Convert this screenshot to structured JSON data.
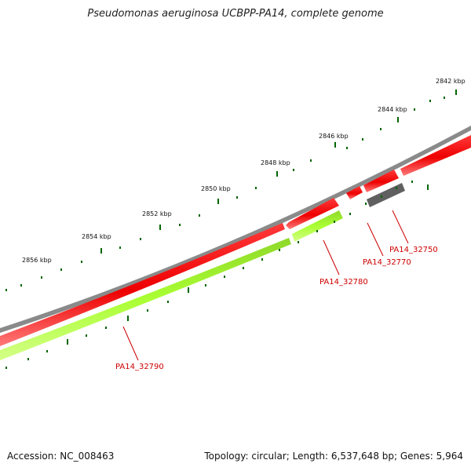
{
  "title": "Pseudomonas aeruginosa UCBPP-PA14, complete genome",
  "footer": {
    "accession": "Accession: NC_008463",
    "stats": "Topology: circular; Length: 6,537,648 bp; Genes: 5,964"
  },
  "scale_labels": [
    "2842 kbp",
    "2844 kbp",
    "2846 kbp",
    "2848 kbp",
    "2850 kbp",
    "2852 kbp",
    "2854 kbp",
    "2856 kbp"
  ],
  "gene_labels": [
    "PA14_32750",
    "PA14_32770",
    "PA14_32780",
    "PA14_32790"
  ],
  "colors": {
    "forward_cds": "#ff0000",
    "reverse_cds": "#aaff33",
    "other_feature": "#666666",
    "backbone": "#888888",
    "tick": "#006600",
    "label": "#cc0000"
  }
}
